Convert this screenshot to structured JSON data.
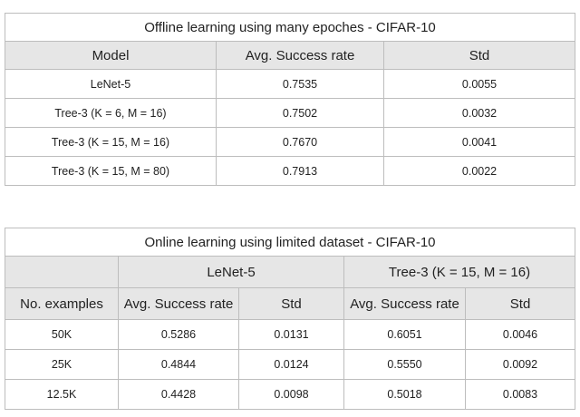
{
  "table1": {
    "caption": "Offline learning using many epoches - CIFAR-10",
    "headers": [
      "Model",
      "Avg. Success rate",
      "Std"
    ],
    "rows": [
      [
        "LeNet-5",
        "0.7535",
        "0.0055"
      ],
      [
        "Tree-3 (K = 6, M = 16)",
        "0.7502",
        "0.0032"
      ],
      [
        "Tree-3 (K = 15, M = 16)",
        "0.7670",
        "0.0041"
      ],
      [
        "Tree-3 (K = 15, M = 80)",
        "0.7913",
        "0.0022"
      ]
    ]
  },
  "table2": {
    "caption": "Online learning using limited dataset - CIFAR-10",
    "groups": [
      "LeNet-5",
      "Tree-3 (K = 15, M = 16)"
    ],
    "headers": [
      "No. examples",
      "Avg. Success rate",
      "Std",
      "Avg. Success rate",
      "Std"
    ],
    "rows": [
      [
        "50K",
        "0.5286",
        "0.0131",
        "0.6051",
        "0.0046"
      ],
      [
        "25K",
        "0.4844",
        "0.0124",
        "0.5550",
        "0.0092"
      ],
      [
        "12.5K",
        "0.4428",
        "0.0098",
        "0.5018",
        "0.0083"
      ]
    ]
  }
}
